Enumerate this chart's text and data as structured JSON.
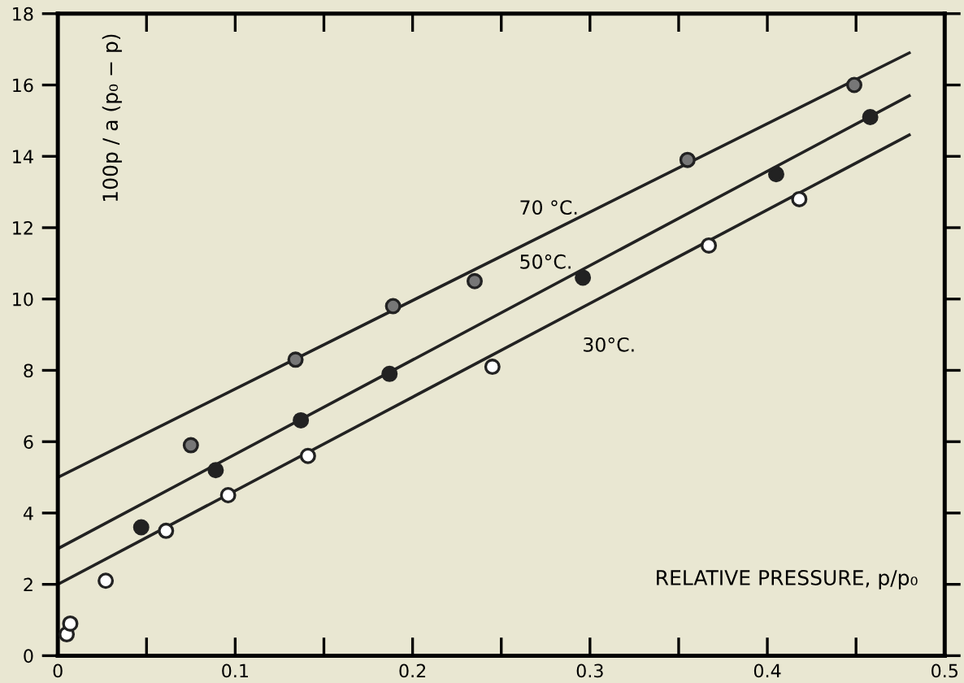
{
  "chart_data": {
    "type": "scatter",
    "xlabel": "RELATIVE PRESSURE, p/p₀",
    "ylabel": "100p / a (p₀ − p)",
    "xlim": [
      0,
      0.5
    ],
    "ylim": [
      0,
      18
    ],
    "xticks": [
      {
        "value": 0,
        "label": "0"
      },
      {
        "value": 0.05,
        "label": null
      },
      {
        "value": 0.1,
        "label": "0.1"
      },
      {
        "value": 0.15,
        "label": null
      },
      {
        "value": 0.2,
        "label": "0.2"
      },
      {
        "value": 0.25,
        "label": null
      },
      {
        "value": 0.3,
        "label": "0.3"
      },
      {
        "value": 0.35,
        "label": null
      },
      {
        "value": 0.4,
        "label": "0.4"
      },
      {
        "value": 0.45,
        "label": null
      },
      {
        "value": 0.5,
        "label": "0.5"
      }
    ],
    "yticks": [
      0,
      2,
      4,
      6,
      8,
      10,
      12,
      14,
      16,
      18
    ],
    "grid": false,
    "legend": false,
    "marker": "circle",
    "series": [
      {
        "type": "line",
        "name": "70 °C.",
        "color": "#222222",
        "x": [
          0,
          0.48
        ],
        "values": [
          5,
          16.9
        ],
        "marker": "none"
      },
      {
        "type": "line",
        "name": "50°C.",
        "color": "#222222",
        "x": [
          0,
          0.48
        ],
        "values": [
          3,
          15.7
        ],
        "marker": "none"
      },
      {
        "type": "line",
        "name": "30°C.",
        "color": "#222222",
        "x": [
          0,
          0.48
        ],
        "values": [
          2,
          14.6
        ],
        "marker": "none"
      },
      {
        "color": "#777777",
        "x": [
          0.075,
          0.134,
          0.189,
          0.235,
          0.355,
          0.449
        ],
        "values": [
          5.9,
          8.3,
          9.8,
          10.5,
          13.9,
          16.0
        ]
      },
      {
        "color": "#222222",
        "x": [
          0.047,
          0.089,
          0.137,
          0.187,
          0.296,
          0.405,
          0.458
        ],
        "values": [
          3.6,
          5.2,
          6.6,
          7.9,
          10.6,
          13.5,
          15.1
        ]
      },
      {
        "color": "#ffffff",
        "x": [
          0.005,
          0.007,
          0.027,
          0.061,
          0.096,
          0.141,
          0.245,
          0.367,
          0.418
        ],
        "values": [
          0.6,
          0.9,
          2.1,
          3.5,
          4.5,
          5.6,
          8.1,
          11.5,
          12.8
        ]
      }
    ]
  }
}
